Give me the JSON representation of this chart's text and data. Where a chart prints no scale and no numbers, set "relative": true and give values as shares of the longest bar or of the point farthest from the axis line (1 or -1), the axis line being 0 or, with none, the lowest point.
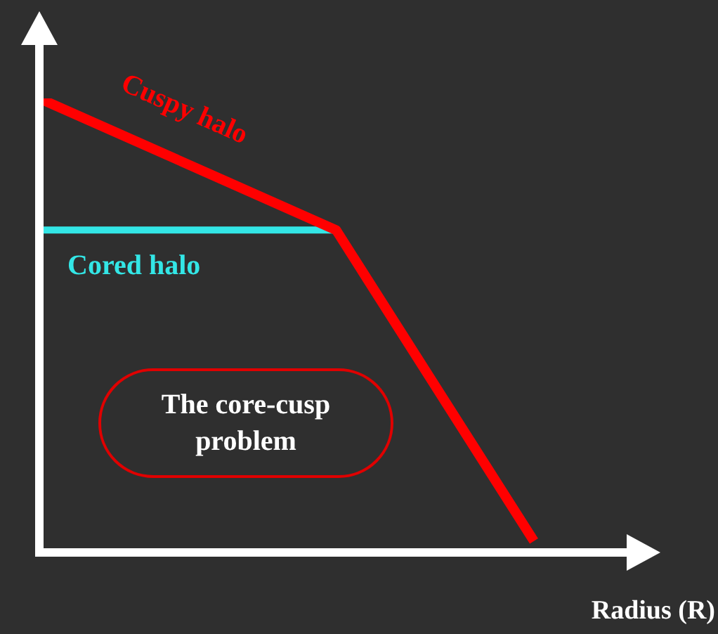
{
  "chart_data": {
    "type": "line",
    "relative": true,
    "xlabel": "Radius (R)",
    "categories": [
      null,
      null,
      null,
      null,
      null,
      null
    ],
    "series": [
      {
        "name": "Cuspy halo",
        "color": "#ff0000",
        "values": [
          1,
          null,
          null,
          0.71,
          null,
          0.025
        ]
      },
      {
        "name": "Cored halo",
        "color": "#33e6e6",
        "values": [
          0.71,
          null,
          null,
          0.71,
          null,
          null
        ]
      }
    ],
    "annotations": [
      "The core-cusp problem"
    ],
    "legend": false,
    "marker": "none",
    "line_style": "solid"
  }
}
